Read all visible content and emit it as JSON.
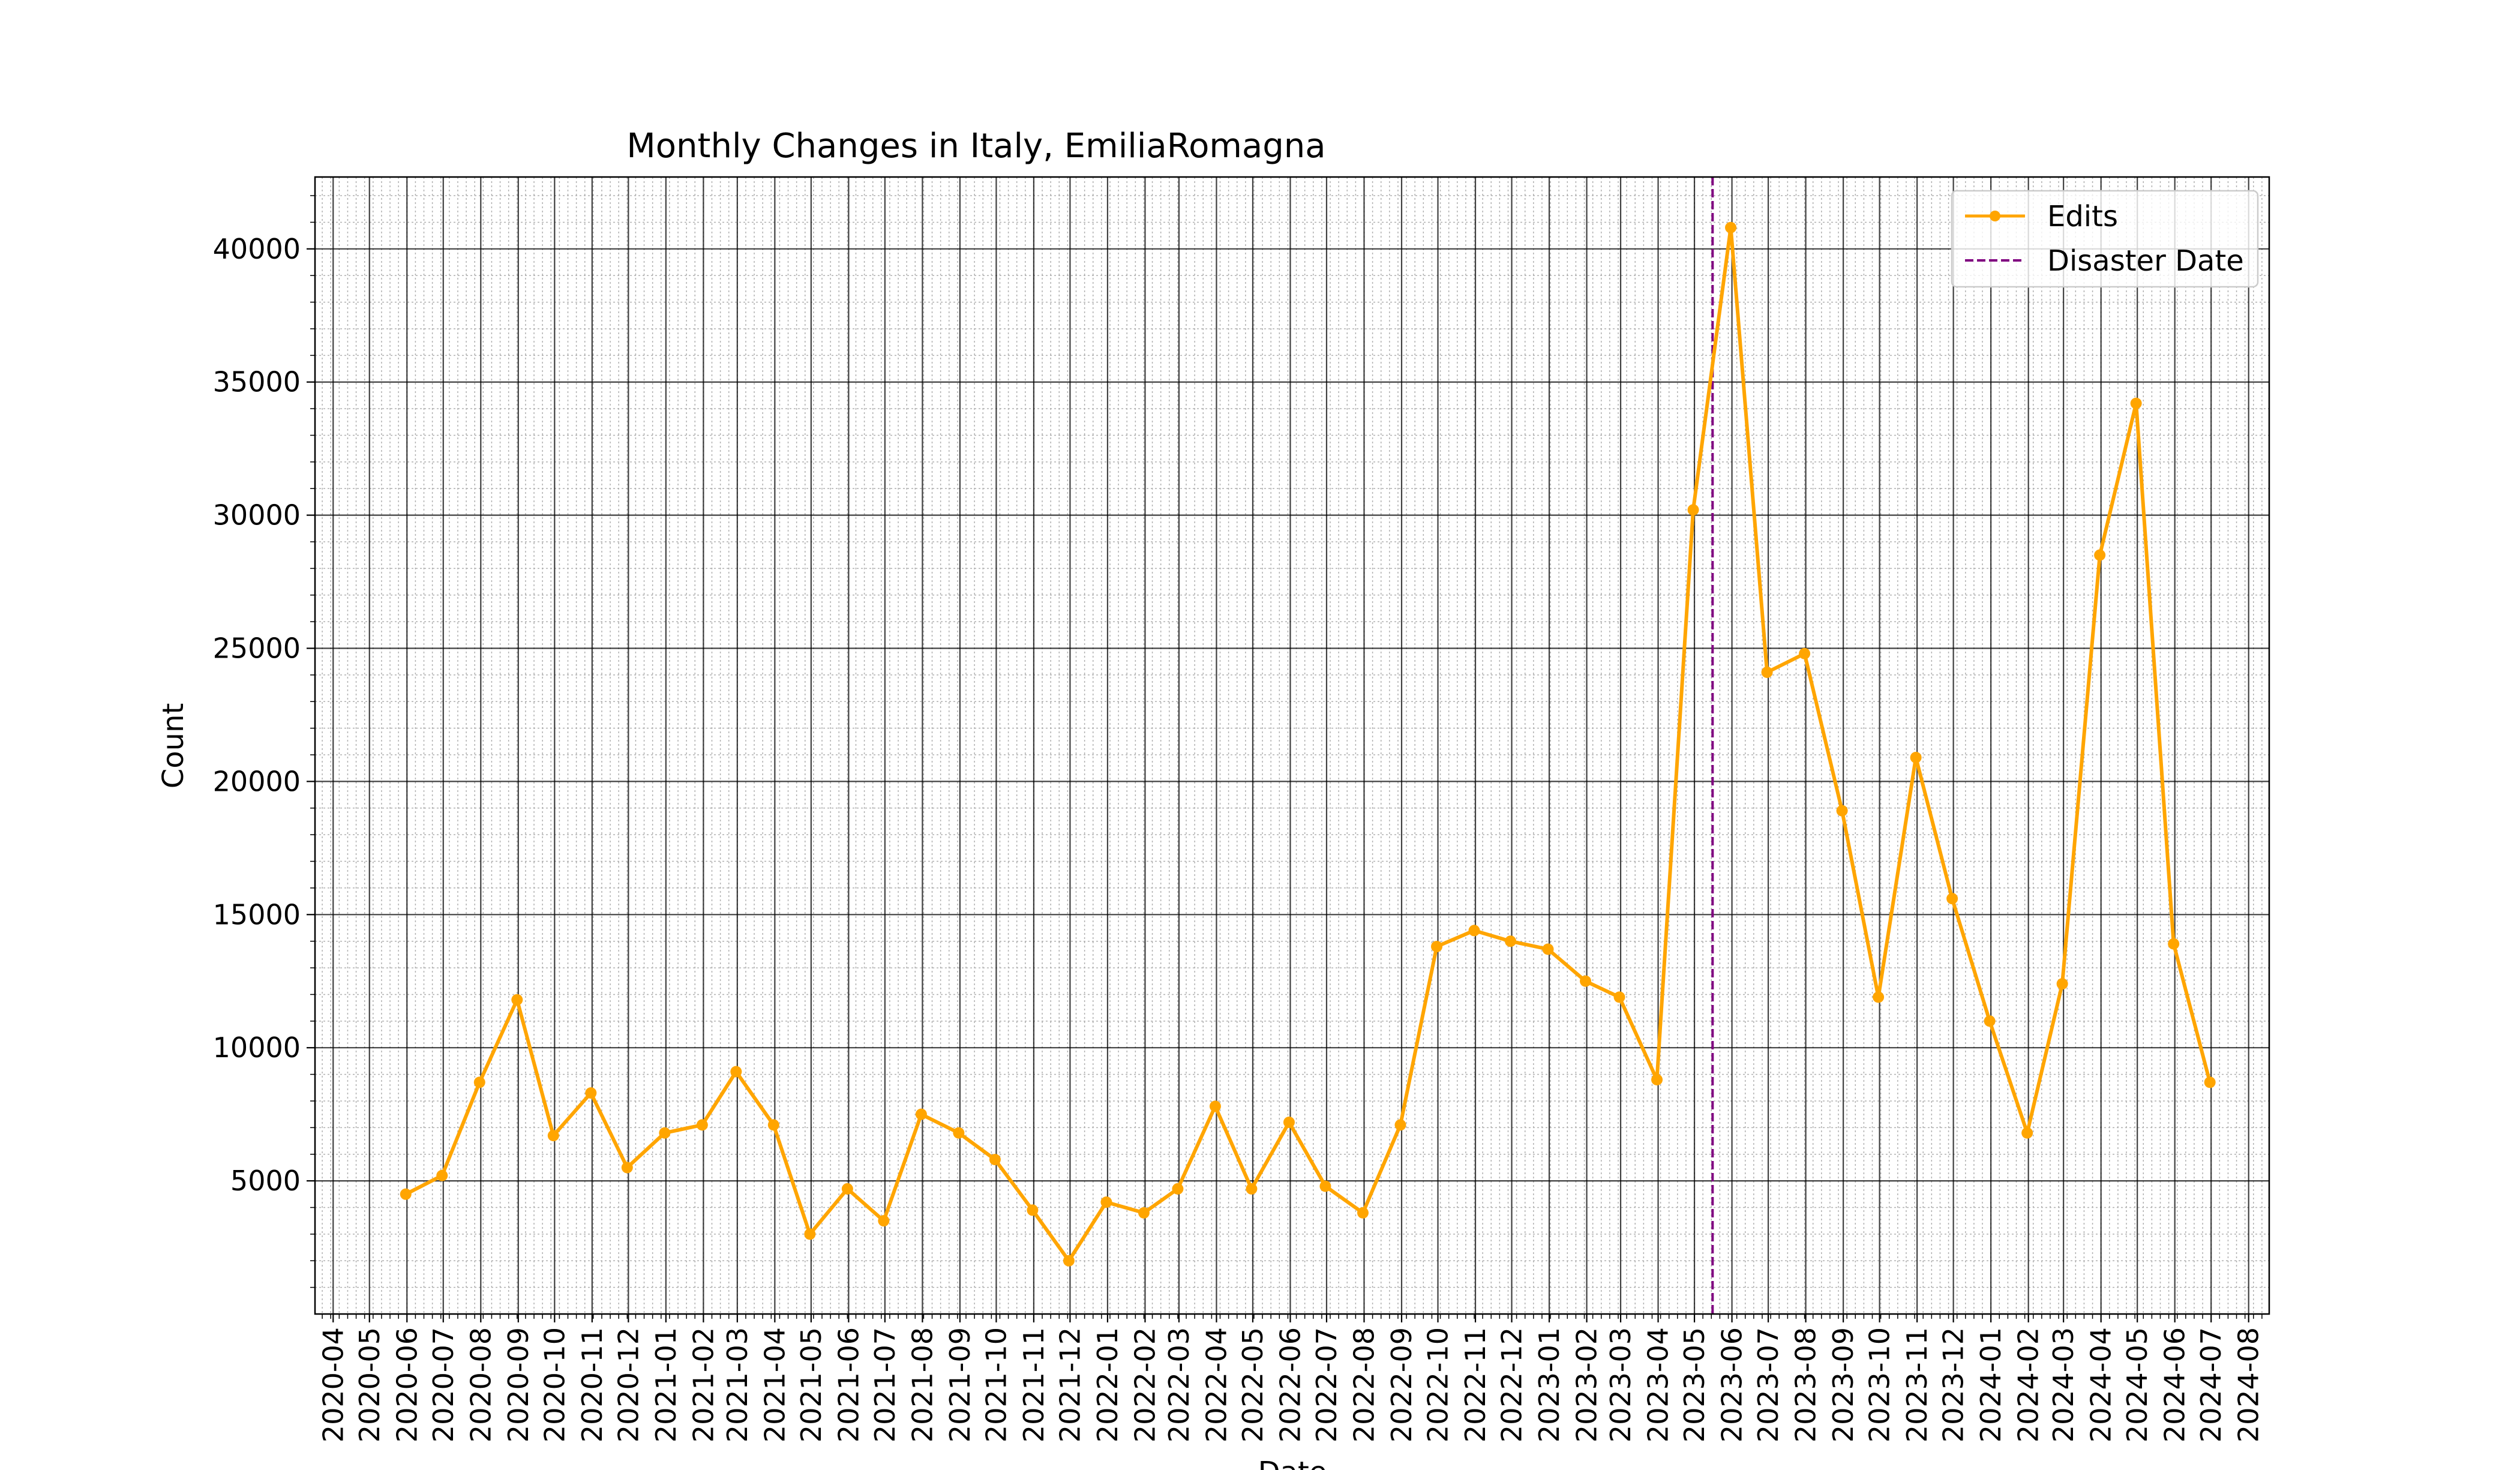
{
  "chart_data": {
    "type": "line",
    "title": "Monthly Changes in Italy, EmiliaRomagna",
    "xlabel": "Date",
    "ylabel": "Count",
    "x_ticks": [
      "2020-04",
      "2020-05",
      "2020-06",
      "2020-07",
      "2020-08",
      "2020-09",
      "2020-10",
      "2020-11",
      "2020-12",
      "2021-01",
      "2021-02",
      "2021-03",
      "2021-04",
      "2021-05",
      "2021-06",
      "2021-07",
      "2021-08",
      "2021-09",
      "2021-10",
      "2021-11",
      "2021-12",
      "2022-01",
      "2022-02",
      "2022-03",
      "2022-04",
      "2022-05",
      "2022-06",
      "2022-07",
      "2022-08",
      "2022-09",
      "2022-10",
      "2022-11",
      "2022-12",
      "2023-01",
      "2023-02",
      "2023-03",
      "2023-04",
      "2023-05",
      "2023-06",
      "2023-07",
      "2023-08",
      "2023-09",
      "2023-10",
      "2023-11",
      "2023-12",
      "2024-01",
      "2024-02",
      "2024-03",
      "2024-04",
      "2024-05",
      "2024-06",
      "2024-07",
      "2024-08"
    ],
    "y_ticks": [
      5000,
      10000,
      15000,
      20000,
      25000,
      30000,
      35000,
      40000
    ],
    "y_tick_labels": [
      "5000",
      "10000",
      "15000",
      "20000",
      "25000",
      "30000",
      "35000",
      "40000"
    ],
    "ylim": [
      0,
      42700
    ],
    "xlim": [
      "2020-03-17",
      "2024-08-18"
    ],
    "grid": true,
    "legend_position": "top-right",
    "colors": {
      "edits": "#FFA500",
      "disaster": "#800080"
    },
    "series": [
      {
        "name": "Edits",
        "x": [
          "2020-05-31",
          "2020-06-30",
          "2020-07-31",
          "2020-08-31",
          "2020-09-30",
          "2020-10-31",
          "2020-11-30",
          "2020-12-31",
          "2021-01-31",
          "2021-02-28",
          "2021-03-31",
          "2021-04-30",
          "2021-05-31",
          "2021-06-30",
          "2021-07-31",
          "2021-08-31",
          "2021-09-30",
          "2021-10-31",
          "2021-11-30",
          "2021-12-31",
          "2022-01-31",
          "2022-02-28",
          "2022-03-31",
          "2022-04-30",
          "2022-05-31",
          "2022-06-30",
          "2022-07-31",
          "2022-08-31",
          "2022-09-30",
          "2022-10-31",
          "2022-11-30",
          "2022-12-31",
          "2023-01-31",
          "2023-02-28",
          "2023-03-31",
          "2023-04-30",
          "2023-05-31",
          "2023-06-30",
          "2023-07-31",
          "2023-08-31",
          "2023-09-30",
          "2023-10-31",
          "2023-11-30",
          "2023-12-31",
          "2024-01-31",
          "2024-02-29",
          "2024-03-31",
          "2024-04-30",
          "2024-05-31",
          "2024-06-30"
        ],
        "values": [
          4500,
          5200,
          8700,
          11800,
          6700,
          8300,
          5500,
          6800,
          7100,
          9100,
          7100,
          3000,
          4700,
          3500,
          7500,
          6800,
          5800,
          3900,
          2000,
          4200,
          3800,
          4700,
          7800,
          4700,
          7200,
          4800,
          3800,
          7100,
          13800,
          14400,
          14000,
          13700,
          12500,
          11900,
          8800,
          30200,
          40800,
          24100,
          24800,
          18900,
          11900,
          20900,
          15600,
          11000,
          6800,
          12400,
          28500,
          34200,
          13900,
          8700
        ]
      }
    ],
    "disaster": {
      "name": "Disaster Date",
      "date": "2023-05-16"
    }
  }
}
